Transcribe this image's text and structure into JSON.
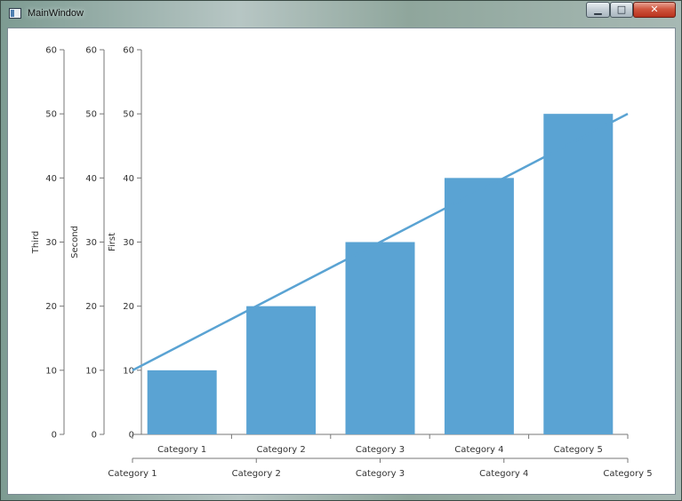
{
  "window": {
    "title": "MainWindow",
    "minimize_icon": "minimize-icon",
    "maximize_icon": "maximize-icon",
    "close_icon": "close-icon",
    "minimize_glyph": "▁",
    "maximize_glyph": "□",
    "close_glyph": "✕"
  },
  "chart_data": {
    "type": "bar",
    "categories": [
      "Category 1",
      "Category 2",
      "Category 3",
      "Category 4",
      "Category 5"
    ],
    "series": [
      {
        "type": "bar",
        "values": [
          10,
          20,
          30,
          40,
          50
        ],
        "color": "#5aa3d3",
        "axis": "First"
      },
      {
        "type": "line",
        "values": [
          10,
          20,
          30,
          40,
          50
        ],
        "color": "#5aa3d3",
        "axis": "First"
      }
    ],
    "y_axes": [
      {
        "label": "Third",
        "ylim": [
          0,
          60
        ],
        "ticks": [
          0,
          10,
          20,
          30,
          40,
          50,
          60
        ]
      },
      {
        "label": "Second",
        "ylim": [
          0,
          60
        ],
        "ticks": [
          0,
          10,
          20,
          30,
          40,
          50,
          60
        ]
      },
      {
        "label": "First",
        "ylim": [
          0,
          60
        ],
        "ticks": [
          0,
          10,
          20,
          30,
          40,
          50,
          60
        ]
      }
    ],
    "x_axes": [
      {
        "categories": [
          "Category 1",
          "Category 2",
          "Category 3",
          "Category 4",
          "Category 5"
        ]
      },
      {
        "categories": [
          "Category 1",
          "Category 2",
          "Category 3",
          "Category 4",
          "Category 5"
        ]
      }
    ],
    "grid": false,
    "legend": "none"
  }
}
